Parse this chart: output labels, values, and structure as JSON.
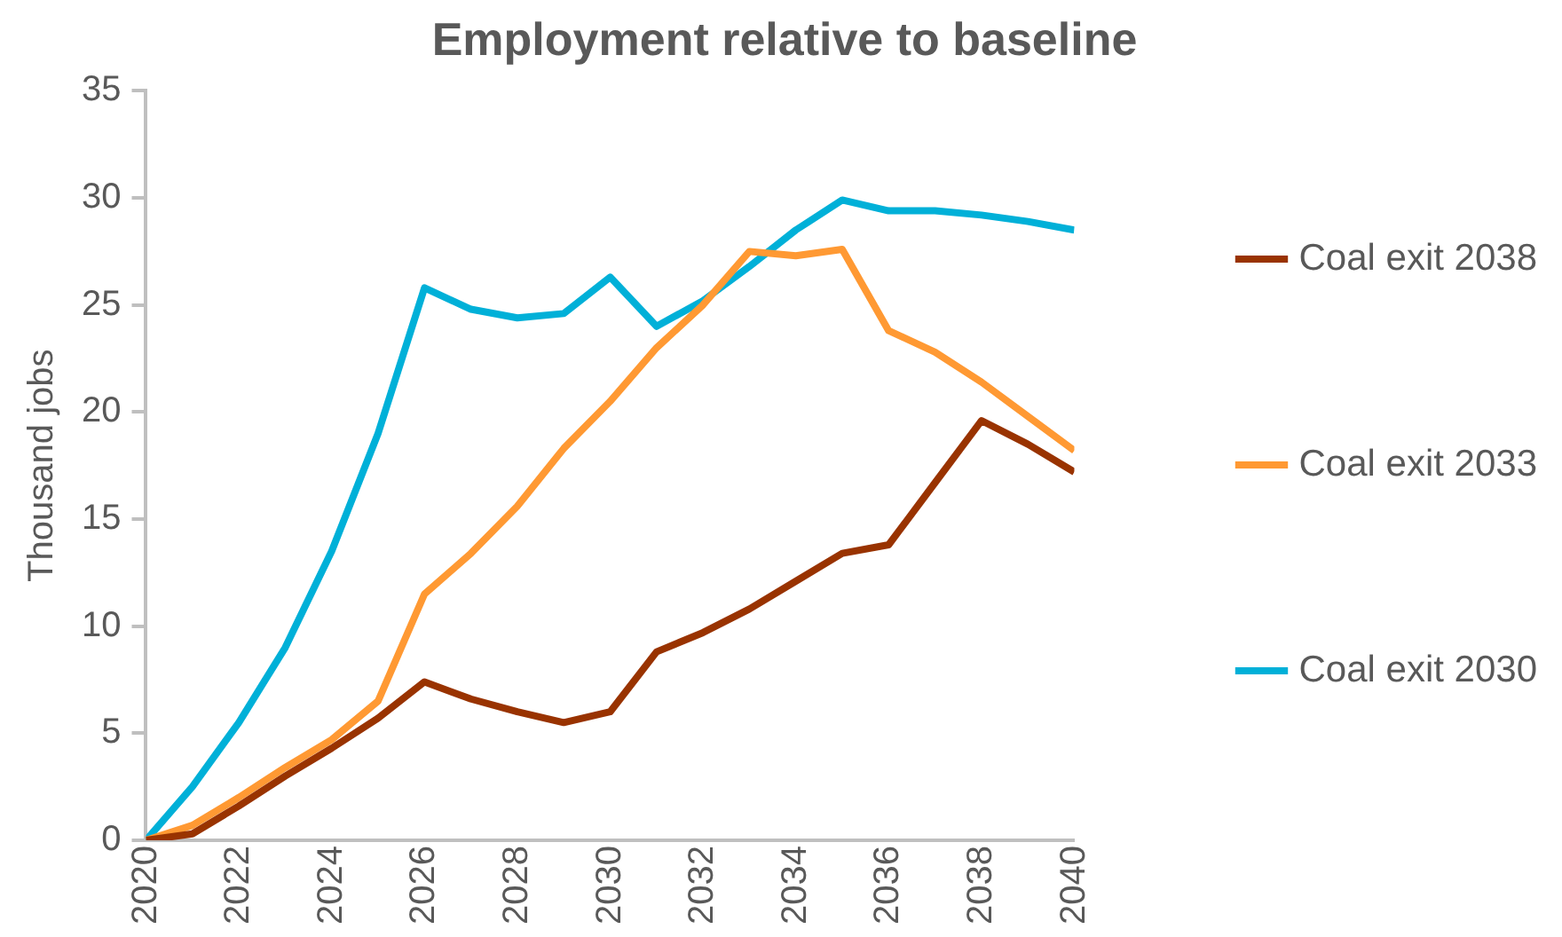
{
  "chart_data": {
    "type": "line",
    "title": "Employment relative to baseline",
    "ylabel": "Thousand jobs",
    "x": [
      2020,
      2021,
      2022,
      2023,
      2024,
      2025,
      2026,
      2027,
      2028,
      2029,
      2030,
      2031,
      2032,
      2033,
      2034,
      2035,
      2036,
      2037,
      2038,
      2039,
      2040
    ],
    "series": [
      {
        "name": "Coal exit 2038",
        "color": "#993300",
        "values": [
          0,
          0.3,
          1.6,
          3,
          4.3,
          5.7,
          7.4,
          6.6,
          6,
          5.5,
          6,
          8.8,
          9.7,
          10.8,
          12.1,
          13.4,
          13.8,
          16.7,
          19.6,
          18.5,
          17.2
        ]
      },
      {
        "name": "Coal exit 2033",
        "color": "#ff9933",
        "values": [
          0,
          0.7,
          2,
          3.4,
          4.7,
          6.5,
          11.5,
          13.4,
          15.6,
          18.3,
          20.5,
          23,
          25,
          27.5,
          27.3,
          27.6,
          23.8,
          22.8,
          21.4,
          19.8,
          18.2
        ]
      },
      {
        "name": "Coal exit 2030",
        "color": "#00b0d8",
        "values": [
          0,
          2.5,
          5.5,
          9,
          13.5,
          19,
          25.8,
          24.8,
          24.4,
          24.6,
          26.3,
          24,
          25.2,
          26.8,
          28.5,
          29.9,
          29.4,
          29.4,
          29.2,
          28.9,
          28.5
        ]
      }
    ],
    "xlim": [
      2020,
      2040
    ],
    "xticks": [
      2020,
      2022,
      2024,
      2026,
      2028,
      2030,
      2032,
      2034,
      2036,
      2038,
      2040
    ],
    "ylim": [
      0,
      35
    ],
    "yticks": [
      0,
      5,
      10,
      15,
      20,
      25,
      30,
      35
    ],
    "grid": false,
    "legend": "right",
    "marker": "none",
    "line_style": "solid"
  }
}
